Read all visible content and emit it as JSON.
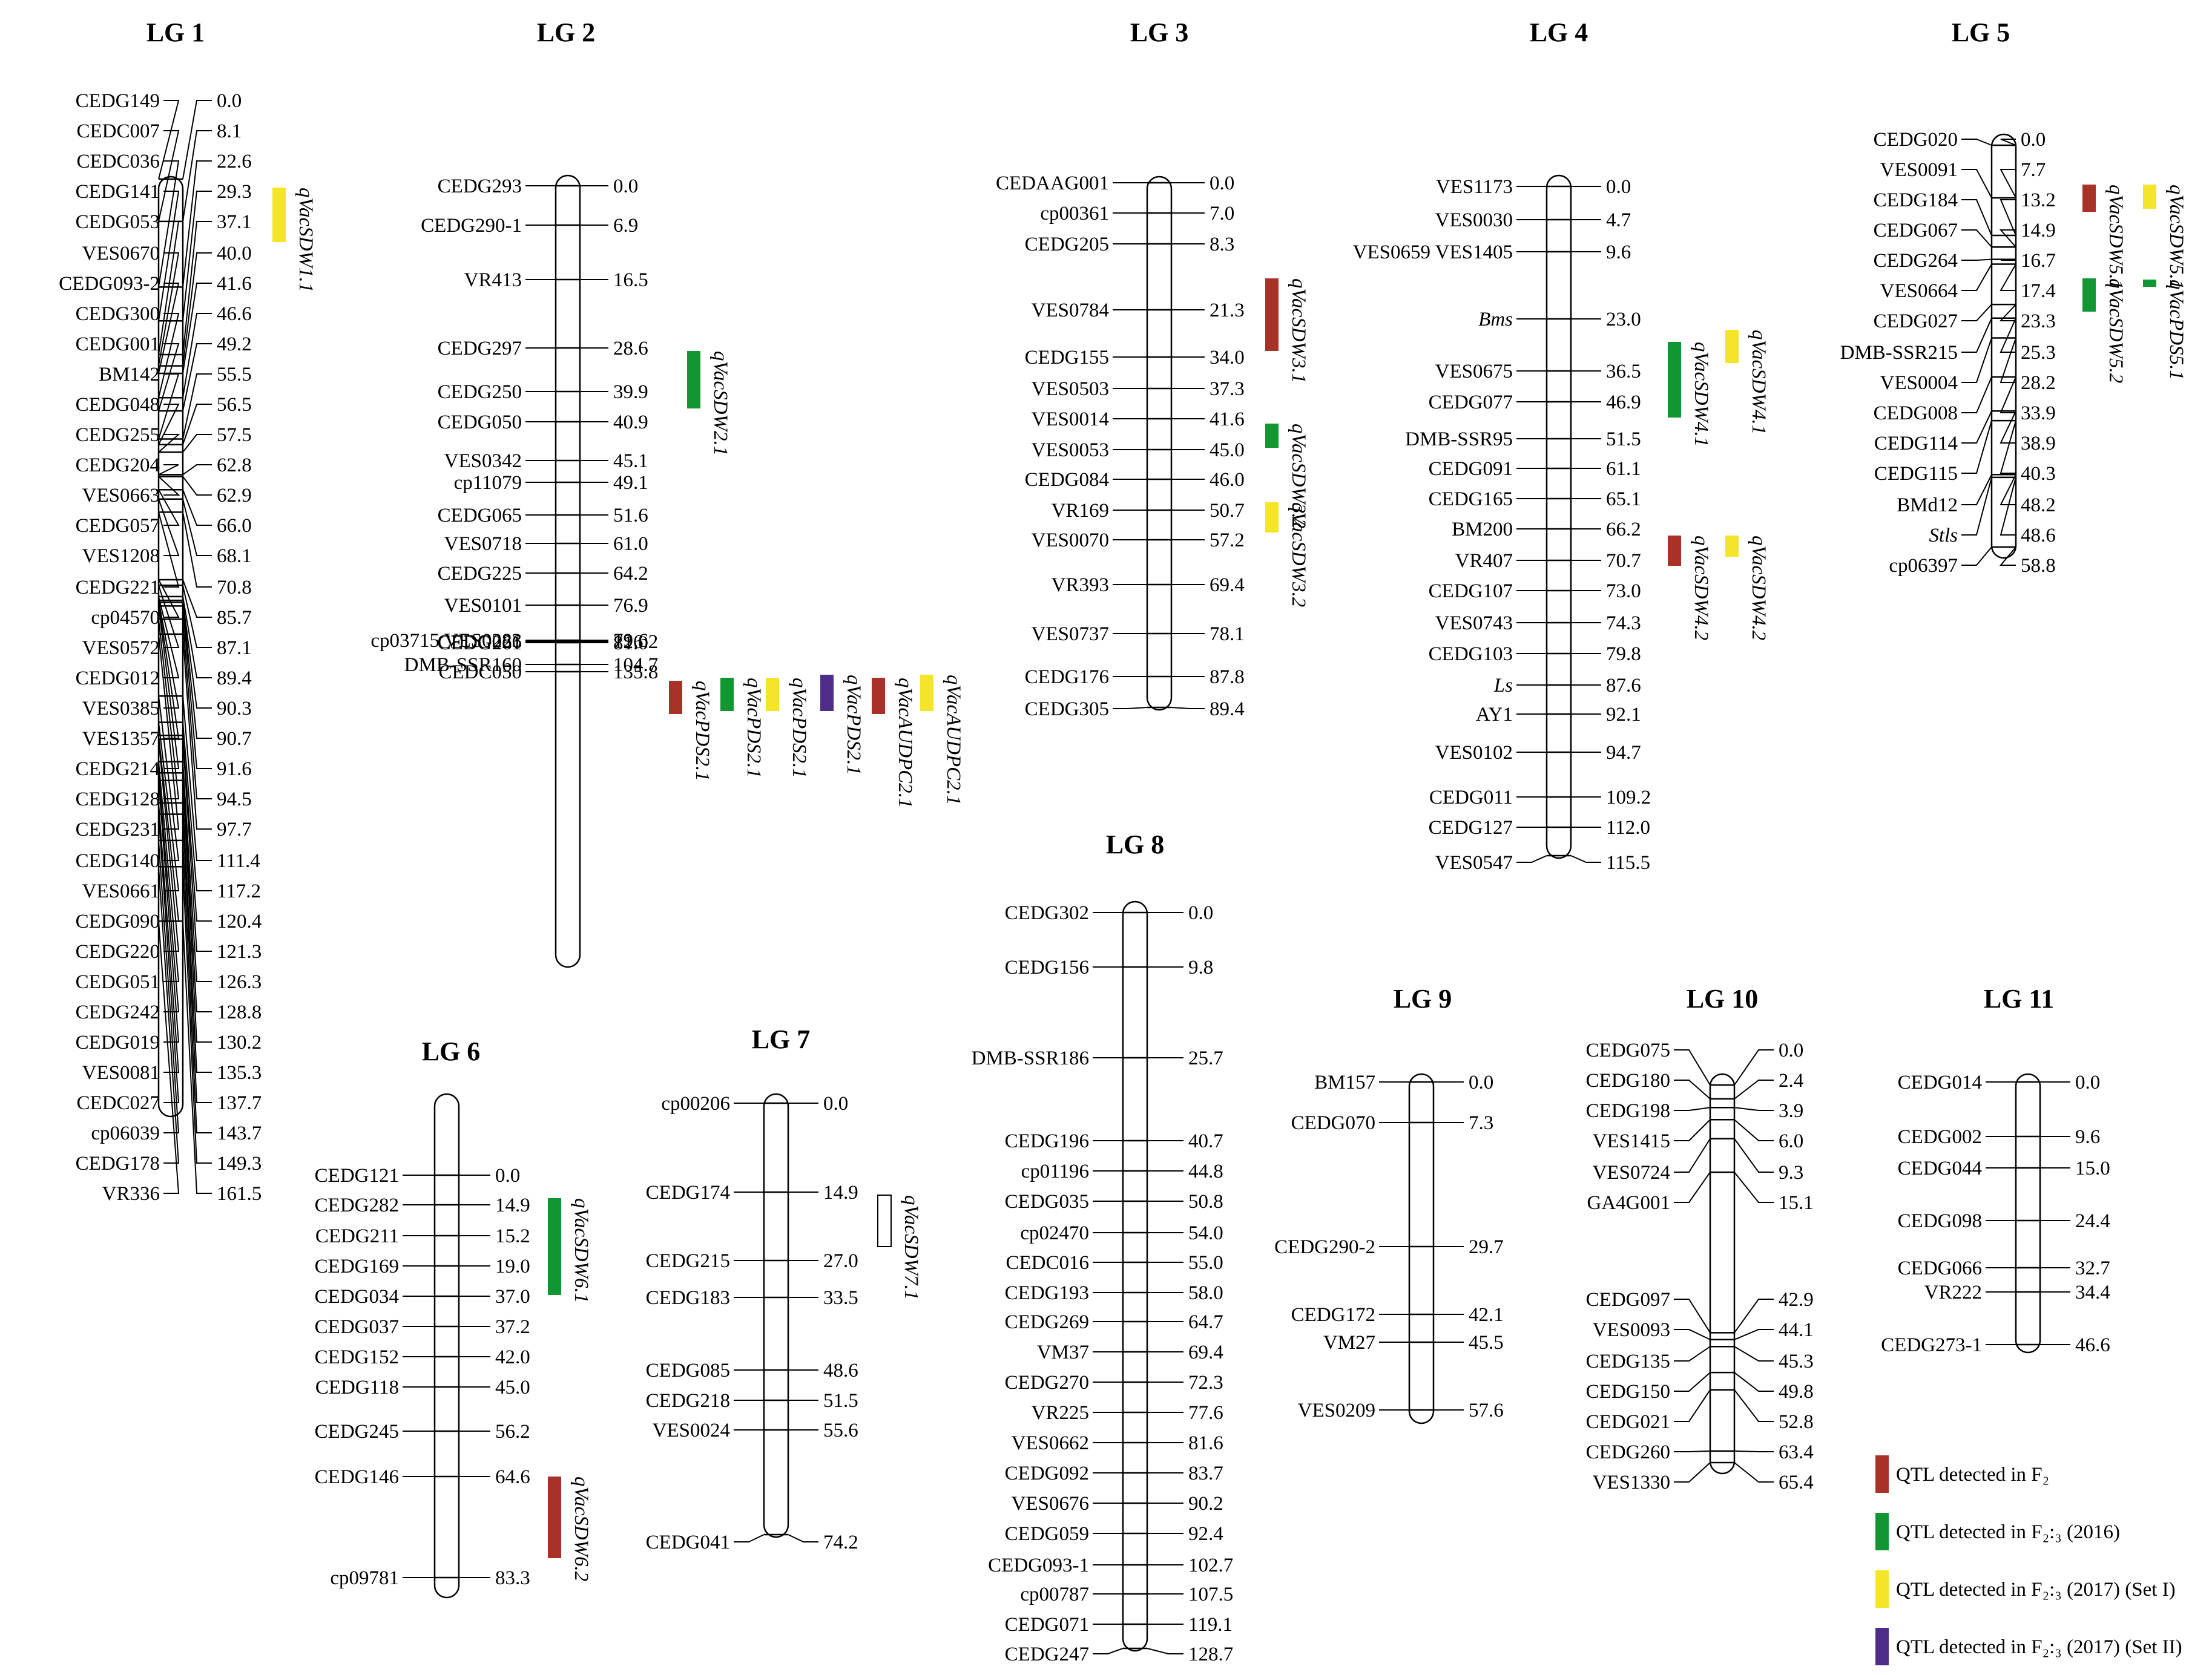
{
  "colors": {
    "f2": "#a83228",
    "f23_2016": "#119632",
    "f23_2017_I": "#f5e528",
    "f23_2017_II": "#4e2c88",
    "line": "#000000"
  },
  "legend": [
    {
      "label": "QTL detected in F₂",
      "color": "#a83228"
    },
    {
      "label": "QTL detected in F₂:₃ (2016)",
      "color": "#119632"
    },
    {
      "label": "QTL detected in F₂:₃ (2017) (Set I)",
      "color": "#f5e528"
    },
    {
      "label": "QTL detected in F₂:₃ (2017) (Set II)",
      "color": "#4e2c88"
    }
  ],
  "linkage_groups": [
    {
      "name": "LG 1",
      "markers": [
        [
          "CEDG149",
          "0.0"
        ],
        [
          "CEDC007",
          "8.1"
        ],
        [
          "CEDC036",
          "22.6"
        ],
        [
          "CEDG141",
          "29.3"
        ],
        [
          "CEDG053",
          "37.1"
        ],
        [
          "VES0670",
          "40.0"
        ],
        [
          "CEDG093-2",
          "41.6"
        ],
        [
          "CEDG300",
          "46.6"
        ],
        [
          "CEDG001",
          "49.2"
        ],
        [
          "BM142",
          "55.5"
        ],
        [
          "CEDG048",
          "56.5"
        ],
        [
          "CEDG255",
          "57.5"
        ],
        [
          "CEDG204",
          "62.8"
        ],
        [
          "VES0663",
          "62.9"
        ],
        [
          "CEDG057",
          "66.0"
        ],
        [
          "VES1208",
          "68.1"
        ],
        [
          "CEDG221",
          "70.8"
        ],
        [
          "cp04570",
          "85.7"
        ],
        [
          "VES0572",
          "87.1"
        ],
        [
          "CEDG012",
          "89.4"
        ],
        [
          "VES0385",
          "90.3"
        ],
        [
          "VES1357",
          "90.7"
        ],
        [
          "CEDG214",
          "91.6"
        ],
        [
          "CEDG128",
          "94.5"
        ],
        [
          "CEDG231",
          "97.7"
        ],
        [
          "CEDG140",
          "111.4"
        ],
        [
          "VES0661",
          "117.2"
        ],
        [
          "CEDG090",
          "120.4"
        ],
        [
          "CEDG220",
          "121.3"
        ],
        [
          "CEDG051",
          "126.3"
        ],
        [
          "CEDG242",
          "128.8"
        ],
        [
          "CEDG019",
          "130.2"
        ],
        [
          "VES0081",
          "135.3"
        ],
        [
          "CEDC027",
          "137.7"
        ],
        [
          "cp06039",
          "143.7"
        ],
        [
          "CEDG178",
          "149.3"
        ],
        [
          "VR336",
          "161.5"
        ]
      ],
      "qtls": [
        {
          "name": "qVacSDW1.1",
          "color": "f23_2017_I",
          "from": "29.3",
          "to": "37.1"
        }
      ]
    },
    {
      "name": "LG 2",
      "markers": [
        [
          "CEDG293",
          "0.0"
        ],
        [
          "CEDG290-1",
          "6.9"
        ],
        [
          "VR413",
          "16.5"
        ],
        [
          "CEDG297",
          "28.6"
        ],
        [
          "CEDG250",
          "39.9"
        ],
        [
          "CEDG050",
          "40.9"
        ],
        [
          "VES0342",
          "45.1"
        ],
        [
          "cp11079",
          "49.1"
        ],
        [
          "CEDG065",
          "51.6"
        ],
        [
          "VES0718",
          "61.0"
        ],
        [
          "CEDG225",
          "64.2"
        ],
        [
          "VES0101",
          "76.9"
        ],
        [
          "cp03715 VES0283",
          "79.6"
        ],
        [
          "CEDG261",
          "81.0"
        ],
        [
          "DMB-SSR160",
          "104.7"
        ],
        [
          "CEDG026",
          "126.2"
        ],
        [
          "CEDC050",
          "135.8"
        ]
      ],
      "qtls": [
        {
          "name": "qVacSDW2.1",
          "color": "f23_2016"
        },
        {
          "name": "qVacPDS2.1",
          "color": "f2"
        },
        {
          "name": "qVacPDS2.1",
          "color": "f23_2016"
        },
        {
          "name": "qVacPDS2.1",
          "color": "f23_2017_I"
        },
        {
          "name": "qVacPDS2.1",
          "color": "f23_2017_II"
        },
        {
          "name": "qVacAUDPC2.1",
          "color": "f2"
        },
        {
          "name": "qVacAUDPC2.1",
          "color": "f23_2017_I"
        }
      ]
    },
    {
      "name": "LG 3",
      "markers": [
        [
          "CEDAAG001",
          "0.0"
        ],
        [
          "cp00361",
          "7.0"
        ],
        [
          "CEDG205",
          "8.3"
        ],
        [
          "VES0784",
          "21.3"
        ],
        [
          "CEDG155",
          "34.0"
        ],
        [
          "VES0503",
          "37.3"
        ],
        [
          "VES0014",
          "41.6"
        ],
        [
          "VES0053",
          "45.0"
        ],
        [
          "CEDG084",
          "46.0"
        ],
        [
          "VR169",
          "50.7"
        ],
        [
          "VES0070",
          "57.2"
        ],
        [
          "VR393",
          "69.4"
        ],
        [
          "VES0737",
          "78.1"
        ],
        [
          "CEDG176",
          "87.8"
        ],
        [
          "CEDG305",
          "89.4"
        ]
      ],
      "qtls": [
        {
          "name": "qVacSDW3.1",
          "color": "f2"
        },
        {
          "name": "qVacSDW3.2",
          "color": "f23_2016"
        },
        {
          "name": "qVacSDW3.2",
          "color": "f23_2017_I"
        }
      ]
    },
    {
      "name": "LG 4",
      "markers": [
        [
          "VES1173",
          "0.0"
        ],
        [
          "VES0030",
          "4.7"
        ],
        [
          "VES0659 VES1405",
          "9.6"
        ],
        [
          "Bms",
          "23.0"
        ],
        [
          "VES0675",
          "36.5"
        ],
        [
          "CEDG077",
          "46.9"
        ],
        [
          "DMB-SSR95",
          "51.5"
        ],
        [
          "CEDG091",
          "61.1"
        ],
        [
          "CEDG165",
          "65.1"
        ],
        [
          "BM200",
          "66.2"
        ],
        [
          "VR407",
          "70.7"
        ],
        [
          "CEDG107",
          "73.0"
        ],
        [
          "VES0743",
          "74.3"
        ],
        [
          "CEDG103",
          "79.8"
        ],
        [
          "Ls",
          "87.6"
        ],
        [
          "AY1",
          "92.1"
        ],
        [
          "VES0102",
          "94.7"
        ],
        [
          "CEDG011",
          "109.2"
        ],
        [
          "CEDG127",
          "112.0"
        ],
        [
          "VES0547",
          "115.5"
        ]
      ],
      "qtls": [
        {
          "name": "qVacSDW4.1",
          "color": "f23_2016"
        },
        {
          "name": "qVacSDW4.1",
          "color": "f23_2017_I"
        },
        {
          "name": "qVacSDW4.2",
          "color": "f2"
        },
        {
          "name": "qVacSDW4.2",
          "color": "f23_2017_I"
        }
      ]
    },
    {
      "name": "LG 5",
      "markers": [
        [
          "CEDG020",
          "0.0"
        ],
        [
          "VES0091",
          "7.7"
        ],
        [
          "CEDG184",
          "13.2"
        ],
        [
          "CEDG067",
          "14.9"
        ],
        [
          "CEDG264",
          "16.7"
        ],
        [
          "VES0664",
          "17.4"
        ],
        [
          "CEDG027",
          "23.3"
        ],
        [
          "DMB-SSR215",
          "25.3"
        ],
        [
          "VES0004",
          "28.2"
        ],
        [
          "CEDG008",
          "33.9"
        ],
        [
          "CEDG114",
          "38.9"
        ],
        [
          "CEDG115",
          "40.3"
        ],
        [
          "BMd12",
          "48.2"
        ],
        [
          "Stls",
          "48.6"
        ],
        [
          "cp06397",
          "58.8"
        ]
      ],
      "qtls": [
        {
          "name": "qVacSDW5.1",
          "color": "f2"
        },
        {
          "name": "qVacSDW5.1",
          "color": "f23_2017_I"
        },
        {
          "name": "qVacSDW5.2",
          "color": "f23_2016"
        },
        {
          "name": "qVacPDS5.1",
          "color": "f23_2016"
        }
      ]
    },
    {
      "name": "LG 6",
      "markers": [
        [
          "CEDG121",
          "0.0"
        ],
        [
          "CEDG282",
          "14.9"
        ],
        [
          "CEDG211",
          "15.2"
        ],
        [
          "CEDG169",
          "19.0"
        ],
        [
          "CEDG034",
          "37.0"
        ],
        [
          "CEDG037",
          "37.2"
        ],
        [
          "CEDG152",
          "42.0"
        ],
        [
          "CEDG118",
          "45.0"
        ],
        [
          "CEDG245",
          "56.2"
        ],
        [
          "CEDG146",
          "64.6"
        ],
        [
          "cp09781",
          "83.3"
        ]
      ],
      "qtls": [
        {
          "name": "qVacSDW6.1",
          "color": "f23_2016"
        },
        {
          "name": "qVacSDW6.2",
          "color": "f2"
        }
      ]
    },
    {
      "name": "LG 7",
      "markers": [
        [
          "cp00206",
          "0.0"
        ],
        [
          "CEDG174",
          "14.9"
        ],
        [
          "CEDG215",
          "27.0"
        ],
        [
          "CEDG183",
          "33.5"
        ],
        [
          "CEDG085",
          "48.6"
        ],
        [
          "CEDG218",
          "51.5"
        ],
        [
          "VES0024",
          "55.6"
        ],
        [
          "CEDG041",
          "74.2"
        ]
      ],
      "qtls": [
        {
          "name": "qVacSDW7.1",
          "color": "none"
        }
      ]
    },
    {
      "name": "LG 8",
      "markers": [
        [
          "CEDG302",
          "0.0"
        ],
        [
          "CEDG156",
          "9.8"
        ],
        [
          "DMB-SSR186",
          "25.7"
        ],
        [
          "CEDG196",
          "40.7"
        ],
        [
          "cp01196",
          "44.8"
        ],
        [
          "CEDG035",
          "50.8"
        ],
        [
          "cp02470",
          "54.0"
        ],
        [
          "CEDC016",
          "55.0"
        ],
        [
          "CEDG193",
          "58.0"
        ],
        [
          "CEDG269",
          "64.7"
        ],
        [
          "VM37",
          "69.4"
        ],
        [
          "CEDG270",
          "72.3"
        ],
        [
          "VR225",
          "77.6"
        ],
        [
          "VES0662",
          "81.6"
        ],
        [
          "CEDG092",
          "83.7"
        ],
        [
          "VES0676",
          "90.2"
        ],
        [
          "CEDG059",
          "92.4"
        ],
        [
          "CEDG093-1",
          "102.7"
        ],
        [
          "cp00787",
          "107.5"
        ],
        [
          "CEDG071",
          "119.1"
        ],
        [
          "CEDG247",
          "128.7"
        ]
      ],
      "qtls": []
    },
    {
      "name": "LG 9",
      "markers": [
        [
          "BM157",
          "0.0"
        ],
        [
          "CEDG070",
          "7.3"
        ],
        [
          "CEDG290-2",
          "29.7"
        ],
        [
          "CEDG172",
          "42.1"
        ],
        [
          "VM27",
          "45.5"
        ],
        [
          "VES0209",
          "57.6"
        ]
      ],
      "qtls": []
    },
    {
      "name": "LG 10",
      "markers": [
        [
          "CEDG075",
          "0.0"
        ],
        [
          "CEDG180",
          "2.4"
        ],
        [
          "CEDG198",
          "3.9"
        ],
        [
          "VES1415",
          "6.0"
        ],
        [
          "VES0724",
          "9.3"
        ],
        [
          "GA4G001",
          "15.1"
        ],
        [
          "CEDG097",
          "42.9"
        ],
        [
          "VES0093",
          "44.1"
        ],
        [
          "CEDG135",
          "45.3"
        ],
        [
          "CEDG150",
          "49.8"
        ],
        [
          "CEDG021",
          "52.8"
        ],
        [
          "CEDG260",
          "63.4"
        ],
        [
          "VES1330",
          "65.4"
        ]
      ],
      "qtls": []
    },
    {
      "name": "LG 11",
      "markers": [
        [
          "CEDG014",
          "0.0"
        ],
        [
          "CEDG002",
          "9.6"
        ],
        [
          "CEDG044",
          "15.0"
        ],
        [
          "CEDG098",
          "24.4"
        ],
        [
          "CEDG066",
          "32.7"
        ],
        [
          "VR222",
          "34.4"
        ],
        [
          "CEDG273-1",
          "46.6"
        ]
      ],
      "qtls": []
    }
  ]
}
